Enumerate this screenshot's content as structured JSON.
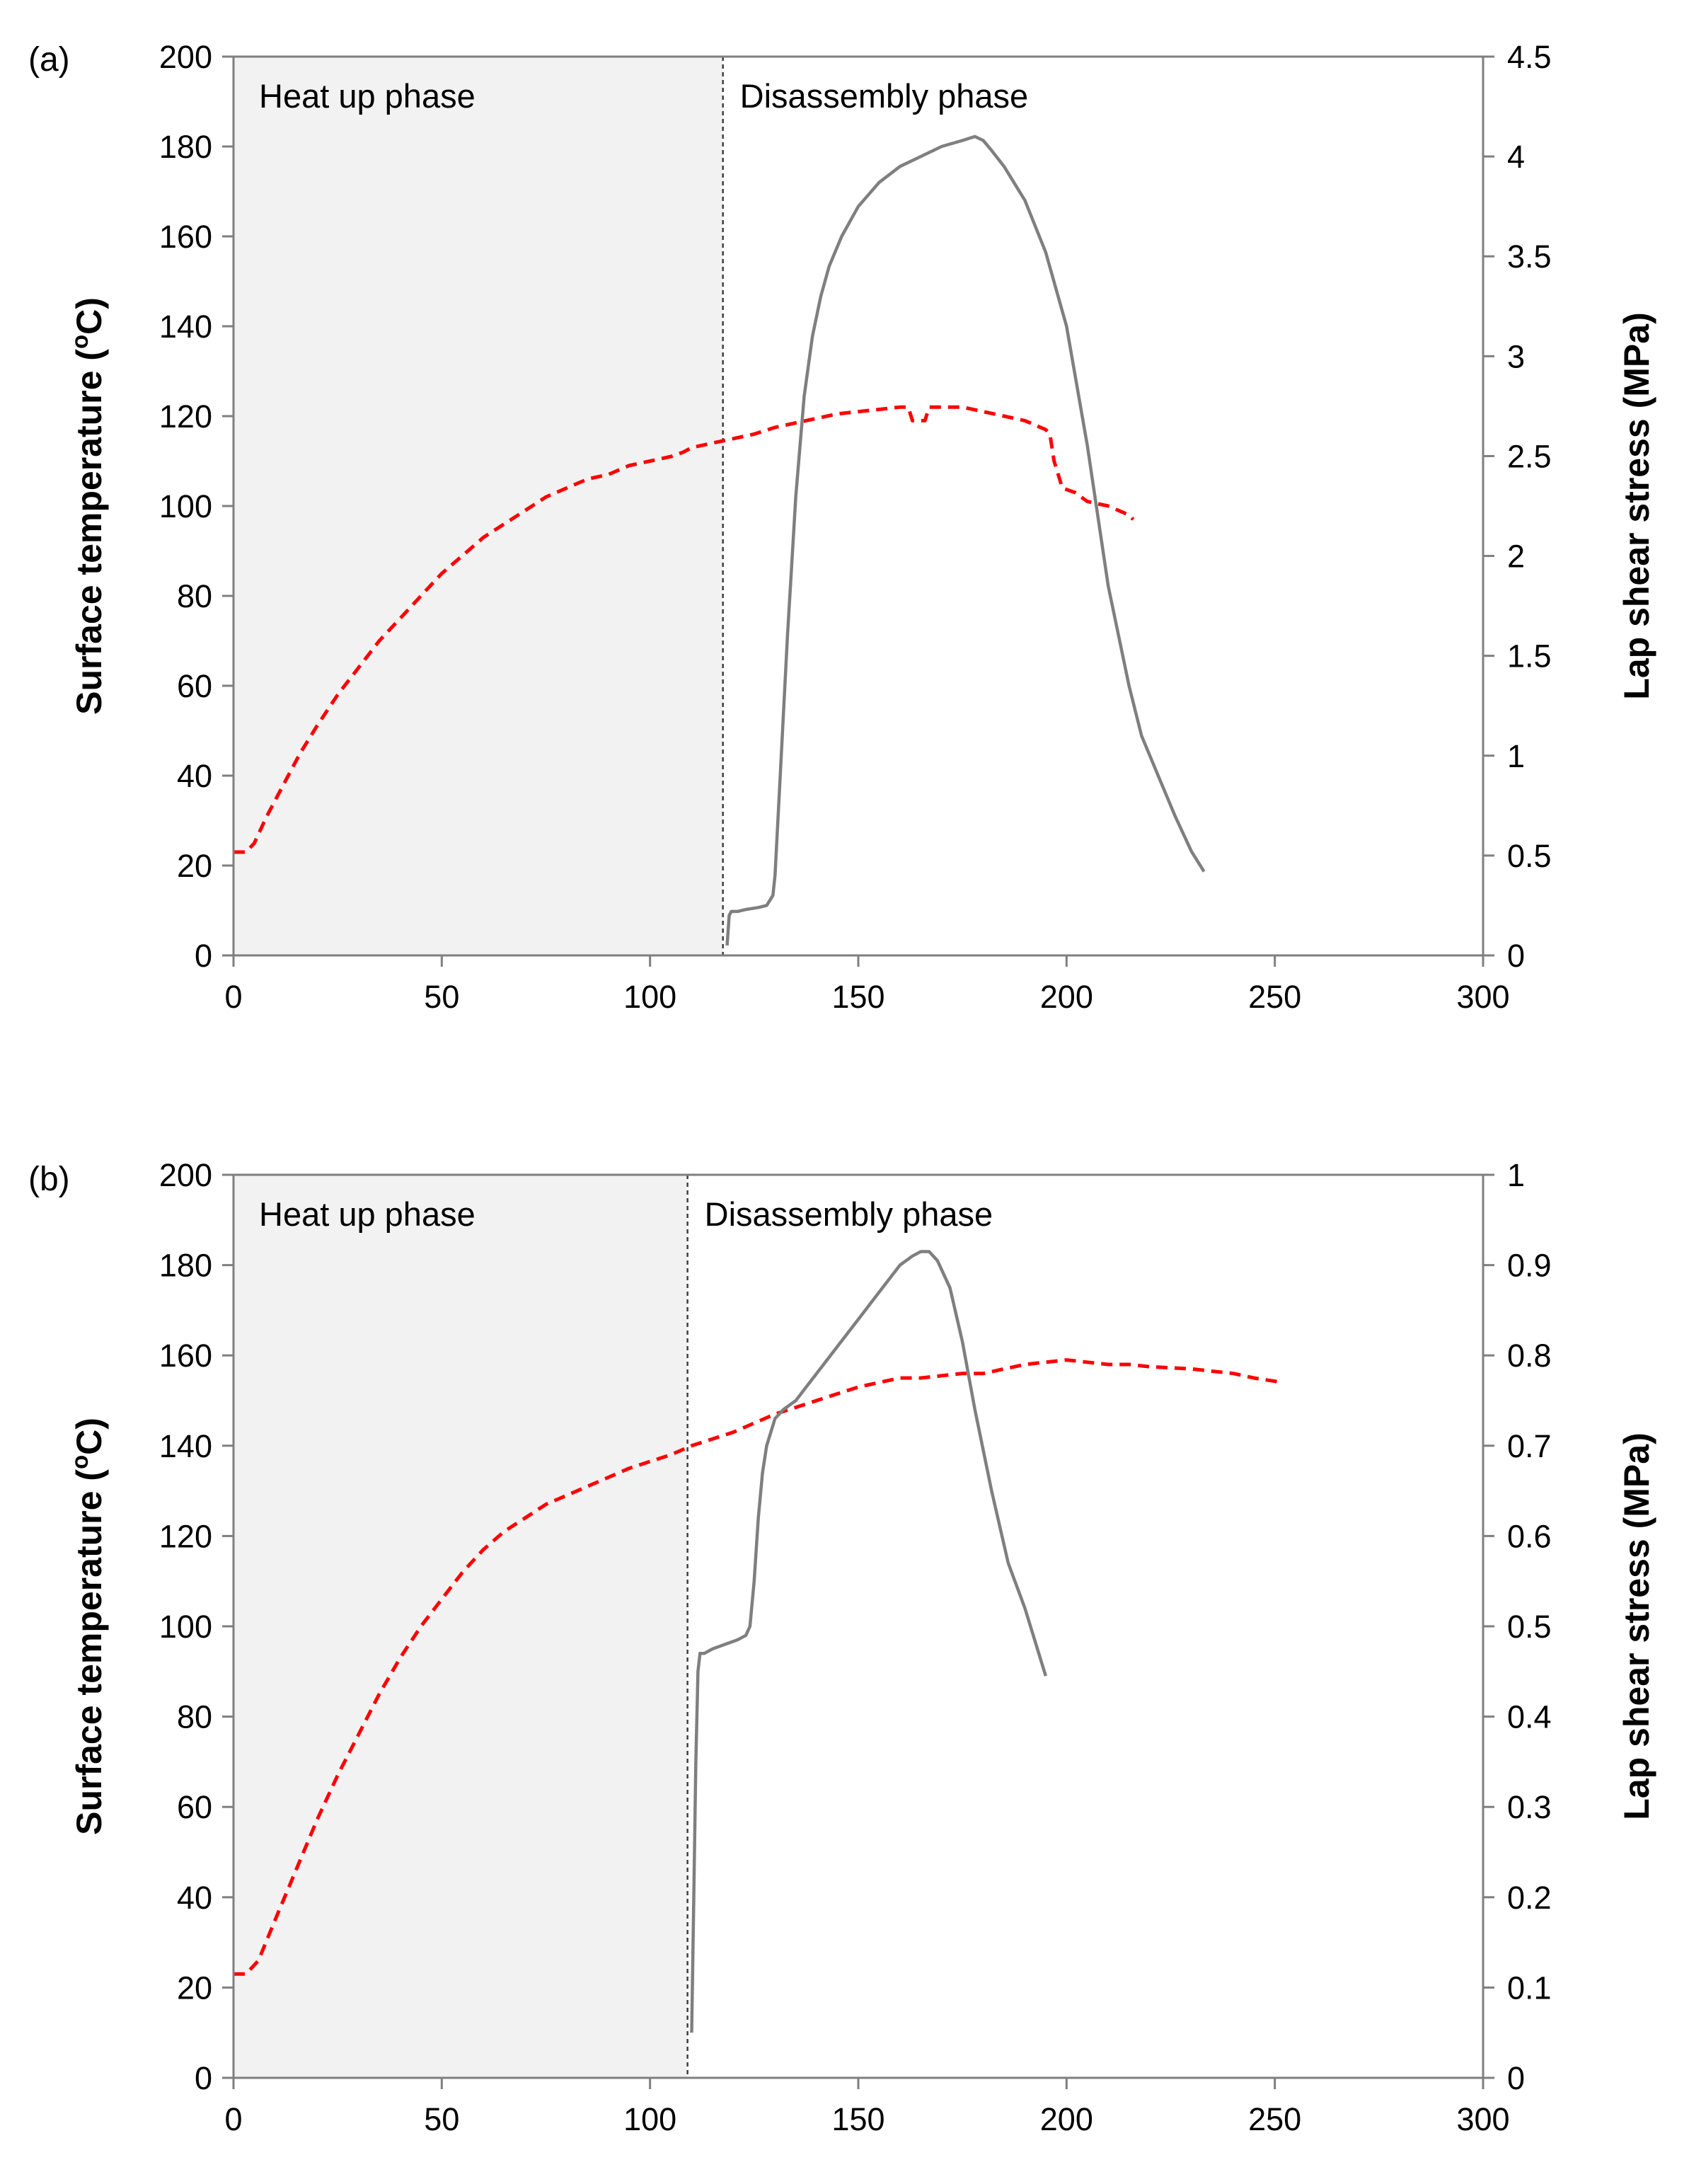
{
  "colors": {
    "temperature_series": "#ff0000",
    "stress_series": "#7f7f7f",
    "heatup_region": "#f2f2f2",
    "axis": "#7f7f7f",
    "divider": "#404040",
    "text": "#000000"
  },
  "chart_data": [
    {
      "type": "line",
      "panel_label": "(a)",
      "title": "",
      "xlabel": "",
      "ylabel": "Surface temperature (oC)",
      "ylabel_main": "Surface temperature (",
      "ylabel_sup": "o",
      "ylabel_end": "C)",
      "y2label": "Lap shear stress (MPa)",
      "xlim": [
        0,
        300
      ],
      "ylim": [
        0,
        200
      ],
      "y2lim": [
        0,
        4.5
      ],
      "x_ticks": [
        0,
        50,
        100,
        150,
        200,
        250,
        300
      ],
      "y_ticks": [
        0,
        20,
        40,
        60,
        80,
        100,
        120,
        140,
        160,
        180,
        200
      ],
      "y2_ticks": [
        "0",
        "0.5",
        "1",
        "1.5",
        "2",
        "2.5",
        "3",
        "3.5",
        "4",
        "4.5"
      ],
      "y2_tick_values": [
        0,
        0.5,
        1,
        1.5,
        2,
        2.5,
        3,
        3.5,
        4,
        4.5
      ],
      "regions": [
        {
          "label": "Heat up phase",
          "x_start": 0,
          "x_end": 117.5
        },
        {
          "label": "Disassembly phase",
          "x_start": 117.5,
          "x_end": 300
        }
      ],
      "divider_x": 117.5,
      "grid": false,
      "series": [
        {
          "name": "Surface temperature",
          "axis": "left",
          "style": "dashed",
          "x": [
            0,
            3,
            5,
            8,
            12,
            16,
            20,
            25,
            30,
            35,
            40,
            45,
            50,
            55,
            60,
            65,
            70,
            75,
            80,
            85,
            90,
            95,
            100,
            105,
            108,
            110,
            115,
            120,
            125,
            130,
            135,
            140,
            145,
            150,
            155,
            160,
            162,
            163,
            165,
            166,
            167,
            168,
            170,
            175,
            180,
            185,
            190,
            195,
            196,
            197,
            199,
            202,
            205,
            210,
            215,
            216
          ],
          "y": [
            23,
            23,
            25,
            31,
            38,
            45,
            51,
            58,
            64,
            70,
            75,
            80,
            85,
            89,
            93,
            96,
            99,
            102,
            104,
            106,
            107,
            109,
            110,
            111,
            112,
            113,
            114,
            115,
            116,
            117.5,
            118.5,
            119.5,
            120.5,
            121,
            121.5,
            122,
            122,
            119,
            119,
            119,
            122,
            122,
            122,
            122,
            121,
            120,
            119,
            117,
            116,
            110,
            104,
            103,
            101,
            100,
            98,
            97
          ]
        },
        {
          "name": "Lap shear stress",
          "axis": "right",
          "style": "solid",
          "x": [
            118.5,
            119,
            119.5,
            121,
            123,
            126,
            128,
            129.5,
            130,
            131,
            133,
            135,
            137,
            139,
            141,
            143,
            146,
            150,
            155,
            160,
            165,
            170,
            175,
            178,
            180,
            182,
            185,
            190,
            195,
            200,
            205,
            210,
            215,
            218,
            222,
            226,
            230,
            233
          ],
          "y": [
            0.05,
            0.2,
            0.22,
            0.22,
            0.23,
            0.24,
            0.25,
            0.3,
            0.4,
            0.8,
            1.6,
            2.3,
            2.8,
            3.1,
            3.3,
            3.45,
            3.6,
            3.75,
            3.87,
            3.95,
            4.0,
            4.05,
            4.08,
            4.1,
            4.08,
            4.03,
            3.95,
            3.78,
            3.52,
            3.15,
            2.55,
            1.85,
            1.35,
            1.1,
            0.9,
            0.7,
            0.52,
            0.42
          ]
        }
      ]
    },
    {
      "type": "line",
      "panel_label": "(b)",
      "title": "",
      "xlabel": "",
      "ylabel": "Surface temperature (oC)",
      "ylabel_main": "Surface temperature (",
      "ylabel_sup": "o",
      "ylabel_end": "C)",
      "y2label": "Lap shear stress (MPa)",
      "xlim": [
        0,
        300
      ],
      "ylim": [
        0,
        200
      ],
      "y2lim": [
        0,
        1
      ],
      "x_ticks": [
        0,
        50,
        100,
        150,
        200,
        250,
        300
      ],
      "y_ticks": [
        0,
        20,
        40,
        60,
        80,
        100,
        120,
        140,
        160,
        180,
        200
      ],
      "y2_ticks": [
        "0",
        "0.1",
        "0.2",
        "0.3",
        "0.4",
        "0.5",
        "0.6",
        "0.7",
        "0.8",
        "0.9",
        "1"
      ],
      "y2_tick_values": [
        0,
        0.1,
        0.2,
        0.3,
        0.4,
        0.5,
        0.6,
        0.7,
        0.8,
        0.9,
        1
      ],
      "regions": [
        {
          "label": "Heat up phase",
          "x_start": 0,
          "x_end": 109
        },
        {
          "label": "Disassembly phase",
          "x_start": 109,
          "x_end": 300
        }
      ],
      "divider_x": 109,
      "grid": false,
      "series": [
        {
          "name": "Surface temperature",
          "axis": "left",
          "style": "dashed",
          "x": [
            0,
            3,
            6,
            10,
            15,
            20,
            25,
            30,
            35,
            40,
            45,
            50,
            55,
            60,
            65,
            70,
            75,
            80,
            85,
            90,
            95,
            100,
            105,
            110,
            115,
            120,
            125,
            130,
            135,
            140,
            145,
            150,
            155,
            160,
            165,
            170,
            175,
            180,
            185,
            190,
            195,
            200,
            205,
            210,
            215,
            220,
            230,
            240,
            245,
            252
          ],
          "y": [
            23,
            23,
            26,
            35,
            46,
            57,
            67,
            76,
            85,
            93,
            100,
            106,
            112,
            117,
            121,
            124,
            127,
            129,
            131,
            133,
            135,
            136.5,
            138,
            140,
            141.5,
            143,
            145,
            147,
            148.5,
            150,
            151.5,
            153,
            154,
            155,
            155,
            155.5,
            156,
            156,
            157,
            158,
            158.5,
            159,
            158.5,
            158,
            158,
            157.5,
            157,
            156,
            155,
            154
          ]
        },
        {
          "name": "Lap shear stress",
          "axis": "right",
          "style": "solid",
          "x": [
            110,
            110.5,
            111,
            111.5,
            112,
            112.5,
            113,
            115,
            118,
            121,
            123,
            124,
            125,
            126,
            127,
            128,
            130,
            132,
            135,
            140,
            145,
            150,
            155,
            160,
            163,
            165,
            167,
            169,
            172,
            175,
            178,
            182,
            186,
            190,
            195
          ],
          "y": [
            0.05,
            0.2,
            0.35,
            0.45,
            0.47,
            0.47,
            0.47,
            0.475,
            0.48,
            0.485,
            0.49,
            0.5,
            0.55,
            0.62,
            0.67,
            0.7,
            0.73,
            0.74,
            0.75,
            0.78,
            0.81,
            0.84,
            0.87,
            0.9,
            0.91,
            0.915,
            0.915,
            0.905,
            0.875,
            0.815,
            0.74,
            0.65,
            0.57,
            0.52,
            0.445
          ]
        }
      ]
    }
  ]
}
